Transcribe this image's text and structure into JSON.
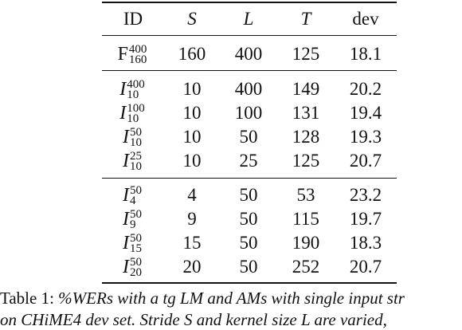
{
  "table": {
    "headers": [
      "ID",
      "S",
      "L",
      "T",
      "dev"
    ],
    "baseline_row": {
      "id_base": "F",
      "id_sup": "400",
      "id_sub": "160",
      "S": "160",
      "L": "400",
      "T": "125",
      "dev": "18.1"
    },
    "group1": [
      {
        "id_base": "I",
        "id_sup": "400",
        "id_sub": "10",
        "S": "10",
        "L": "400",
        "T": "149",
        "dev": "20.2"
      },
      {
        "id_base": "I",
        "id_sup": "100",
        "id_sub": "10",
        "S": "10",
        "L": "100",
        "T": "131",
        "dev": "19.4"
      },
      {
        "id_base": "I",
        "id_sup": "50",
        "id_sub": "10",
        "S": "10",
        "L": "50",
        "T": "128",
        "dev": "19.3"
      },
      {
        "id_base": "I",
        "id_sup": "25",
        "id_sub": "10",
        "S": "10",
        "L": "25",
        "T": "125",
        "dev": "20.7"
      }
    ],
    "group2": [
      {
        "id_base": "I",
        "id_sup": "50",
        "id_sub": "4",
        "S": "4",
        "L": "50",
        "T": "53",
        "dev": "23.2"
      },
      {
        "id_base": "I",
        "id_sup": "50",
        "id_sub": "9",
        "S": "9",
        "L": "50",
        "T": "115",
        "dev": "19.7"
      },
      {
        "id_base": "I",
        "id_sup": "50",
        "id_sub": "15",
        "S": "15",
        "L": "50",
        "T": "190",
        "dev": "18.3"
      },
      {
        "id_base": "I",
        "id_sup": "50",
        "id_sub": "20",
        "S": "20",
        "L": "50",
        "T": "252",
        "dev": "20.7"
      }
    ]
  },
  "caption": {
    "line1_prefix": "Table 1: ",
    "line1_emph": "%WERs with a tg LM and AMs with single input str",
    "line2_a": "on CHiME4 dev set. Stride ",
    "line2_S": "S",
    "line2_b": " and kernel size ",
    "line2_L": "L",
    "line2_c": " are varied,"
  }
}
